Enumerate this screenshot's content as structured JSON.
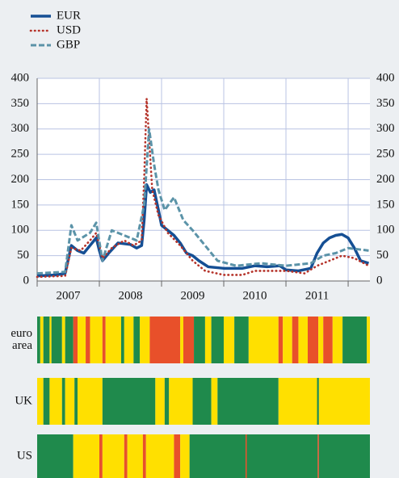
{
  "chart_data": {
    "type": "line",
    "xlim": [
      2007,
      2012.35
    ],
    "xticks": [
      2007,
      2008,
      2009,
      2010,
      2011,
      2012
    ],
    "xlabels": [
      {
        "value": 2007.5,
        "label": "2007"
      },
      {
        "value": 2008.5,
        "label": "2008"
      },
      {
        "value": 2009.5,
        "label": "2009"
      },
      {
        "value": 2010.5,
        "label": "2010"
      },
      {
        "value": 2011.5,
        "label": "2011"
      }
    ],
    "ylim": [
      0,
      400
    ],
    "yticks": [
      0,
      50,
      100,
      150,
      200,
      250,
      300,
      350,
      400
    ],
    "grid": true,
    "legend": "top-left",
    "series": [
      {
        "name": "EUR",
        "color": "#154f94",
        "style": "solid",
        "x": [
          2007.0,
          2007.3,
          2007.45,
          2007.55,
          2007.65,
          2007.75,
          2007.85,
          2007.95,
          2008.0,
          2008.05,
          2008.15,
          2008.3,
          2008.5,
          2008.6,
          2008.68,
          2008.72,
          2008.76,
          2008.82,
          2008.88,
          2008.95,
          2009.0,
          2009.1,
          2009.2,
          2009.3,
          2009.4,
          2009.5,
          2009.6,
          2009.75,
          2010.0,
          2010.3,
          2010.5,
          2010.7,
          2010.9,
          2011.0,
          2011.2,
          2011.4,
          2011.5,
          2011.6,
          2011.7,
          2011.8,
          2011.9,
          2012.0,
          2012.1,
          2012.2,
          2012.33
        ],
        "values": [
          10,
          12,
          15,
          70,
          60,
          55,
          70,
          85,
          60,
          40,
          55,
          75,
          72,
          65,
          70,
          120,
          190,
          175,
          180,
          140,
          110,
          100,
          90,
          75,
          55,
          50,
          40,
          28,
          25,
          25,
          30,
          28,
          30,
          22,
          20,
          25,
          55,
          75,
          85,
          90,
          92,
          85,
          65,
          40,
          35
        ]
      },
      {
        "name": "USD",
        "color": "#b5332a",
        "style": "dotted",
        "x": [
          2007.0,
          2007.45,
          2007.55,
          2007.7,
          2007.85,
          2007.95,
          2008.05,
          2008.2,
          2008.4,
          2008.55,
          2008.68,
          2008.72,
          2008.76,
          2008.8,
          2008.85,
          2008.95,
          2009.1,
          2009.3,
          2009.5,
          2009.7,
          2010.0,
          2010.3,
          2010.5,
          2010.7,
          2010.9,
          2011.0,
          2011.3,
          2011.5,
          2011.7,
          2011.9,
          2012.1,
          2012.33
        ],
        "values": [
          8,
          10,
          65,
          60,
          80,
          95,
          45,
          65,
          80,
          70,
          80,
          200,
          360,
          280,
          180,
          130,
          95,
          70,
          40,
          20,
          12,
          12,
          20,
          20,
          20,
          20,
          15,
          30,
          40,
          50,
          45,
          30
        ]
      },
      {
        "name": "GBP",
        "color": "#5b93a8",
        "style": "dashed",
        "x": [
          2007.0,
          2007.45,
          2007.55,
          2007.65,
          2007.85,
          2007.95,
          2008.05,
          2008.2,
          2008.4,
          2008.6,
          2008.72,
          2008.8,
          2008.88,
          2008.95,
          2009.05,
          2009.2,
          2009.35,
          2009.5,
          2009.7,
          2009.9,
          2010.2,
          2010.6,
          2011.0,
          2011.4,
          2011.6,
          2011.8,
          2012.0,
          2012.33
        ],
        "values": [
          15,
          18,
          110,
          80,
          95,
          115,
          40,
          100,
          90,
          80,
          150,
          300,
          230,
          180,
          140,
          165,
          120,
          100,
          70,
          40,
          30,
          35,
          30,
          35,
          50,
          55,
          65,
          60
        ]
      }
    ],
    "palette": [
      "#1f8a4c",
      "#ffe000",
      "#e8502a"
    ],
    "strips": [
      {
        "label": [
          "euro",
          "area"
        ],
        "segments": [
          [
            2007.0,
            2007.05,
            0
          ],
          [
            2007.05,
            2007.1,
            1
          ],
          [
            2007.1,
            2007.2,
            0
          ],
          [
            2007.2,
            2007.23,
            1
          ],
          [
            2007.23,
            2007.4,
            0
          ],
          [
            2007.4,
            2007.45,
            1
          ],
          [
            2007.45,
            2007.58,
            0
          ],
          [
            2007.58,
            2007.65,
            2
          ],
          [
            2007.65,
            2007.78,
            1
          ],
          [
            2007.78,
            2007.85,
            2
          ],
          [
            2007.85,
            2008.05,
            1
          ],
          [
            2008.05,
            2008.1,
            2
          ],
          [
            2008.1,
            2008.35,
            1
          ],
          [
            2008.35,
            2008.4,
            0
          ],
          [
            2008.4,
            2008.55,
            1
          ],
          [
            2008.55,
            2008.65,
            0
          ],
          [
            2008.65,
            2008.81,
            1
          ],
          [
            2008.81,
            2009.3,
            2
          ],
          [
            2009.3,
            2009.35,
            1
          ],
          [
            2009.35,
            2009.52,
            2
          ],
          [
            2009.52,
            2009.7,
            0
          ],
          [
            2009.7,
            2009.8,
            1
          ],
          [
            2009.8,
            2010.0,
            0
          ],
          [
            2010.0,
            2010.17,
            1
          ],
          [
            2010.17,
            2010.4,
            0
          ],
          [
            2010.4,
            2010.88,
            1
          ],
          [
            2010.88,
            2010.95,
            2
          ],
          [
            2010.95,
            2011.1,
            1
          ],
          [
            2011.1,
            2011.2,
            2
          ],
          [
            2011.2,
            2011.35,
            1
          ],
          [
            2011.35,
            2011.52,
            2
          ],
          [
            2011.52,
            2011.6,
            1
          ],
          [
            2011.6,
            2011.75,
            2
          ],
          [
            2011.75,
            2011.91,
            1
          ],
          [
            2011.91,
            2012.3,
            0
          ],
          [
            2012.3,
            2012.35,
            1
          ]
        ]
      },
      {
        "label": [
          "UK"
        ],
        "segments": [
          [
            2007.0,
            2007.1,
            1
          ],
          [
            2007.1,
            2007.2,
            0
          ],
          [
            2007.2,
            2007.4,
            1
          ],
          [
            2007.4,
            2007.45,
            0
          ],
          [
            2007.45,
            2007.6,
            1
          ],
          [
            2007.6,
            2007.65,
            0
          ],
          [
            2007.65,
            2008.05,
            1
          ],
          [
            2008.05,
            2008.9,
            0
          ],
          [
            2008.9,
            2009.05,
            1
          ],
          [
            2009.05,
            2009.12,
            0
          ],
          [
            2009.12,
            2009.5,
            1
          ],
          [
            2009.5,
            2009.8,
            0
          ],
          [
            2009.8,
            2009.9,
            1
          ],
          [
            2009.9,
            2010.88,
            0
          ],
          [
            2010.88,
            2011.5,
            1
          ],
          [
            2011.5,
            2011.53,
            0
          ],
          [
            2011.53,
            2012.35,
            1
          ]
        ]
      },
      {
        "label": [
          "US"
        ],
        "segments": [
          [
            2007.0,
            2007.58,
            0
          ],
          [
            2007.58,
            2008.0,
            1
          ],
          [
            2008.0,
            2008.05,
            2
          ],
          [
            2008.05,
            2008.4,
            1
          ],
          [
            2008.4,
            2008.45,
            2
          ],
          [
            2008.45,
            2008.7,
            1
          ],
          [
            2008.7,
            2008.75,
            2
          ],
          [
            2008.75,
            2009.2,
            1
          ],
          [
            2009.2,
            2009.3,
            2
          ],
          [
            2009.3,
            2009.45,
            1
          ],
          [
            2009.45,
            2010.35,
            0
          ],
          [
            2010.35,
            2010.37,
            2
          ],
          [
            2010.37,
            2011.51,
            0
          ],
          [
            2011.51,
            2011.53,
            2
          ],
          [
            2011.53,
            2012.35,
            0
          ]
        ]
      }
    ]
  }
}
